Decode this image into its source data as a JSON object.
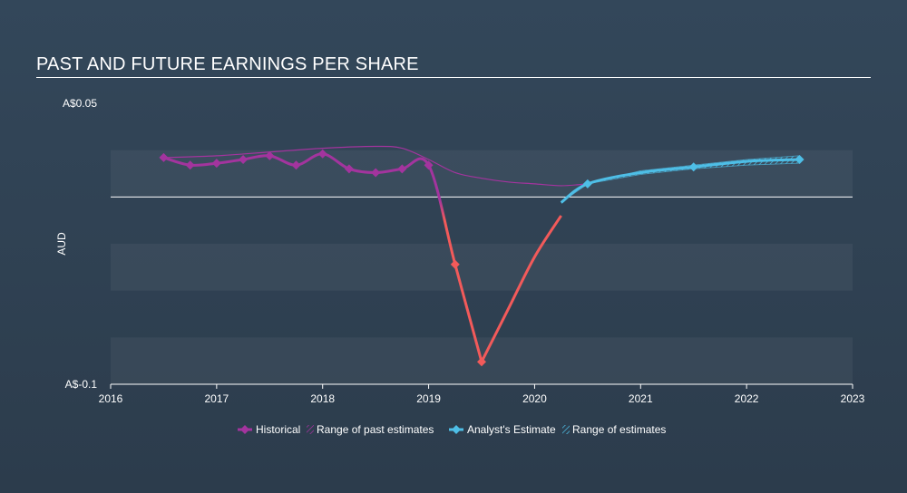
{
  "title": "PAST AND FUTURE EARNINGS PER SHARE",
  "colors": {
    "historical": "#a3349e",
    "historical_negative": "#f25a5a",
    "estimate": "#4ebee6",
    "past_range": "#a3349e",
    "baseline": "#ffffff"
  },
  "chart_data": {
    "type": "line",
    "ylabel": "AUD",
    "ytick_labels": [
      "A$0.05",
      "A$-0.1"
    ],
    "ylim": [
      -0.1,
      0.05
    ],
    "xlim": [
      2016,
      2023
    ],
    "xtick_labels": [
      "2016",
      "2017",
      "2018",
      "2019",
      "2020",
      "2021",
      "2022",
      "2023"
    ],
    "grid": "horizontal bands",
    "legend_position": "bottom-center",
    "series": [
      {
        "name": "Historical",
        "x": [
          2016.5,
          2016.75,
          2017.0,
          2017.25,
          2017.5,
          2017.75,
          2018.0,
          2018.25,
          2018.5,
          2018.75,
          2019.0,
          2019.25,
          2019.5
        ],
        "y": [
          0.021,
          0.017,
          0.018,
          0.02,
          0.022,
          0.017,
          0.023,
          0.015,
          0.013,
          0.015,
          0.017,
          -0.036,
          -0.088
        ]
      },
      {
        "name": "Range of past estimates",
        "x": [
          2016.5,
          2017.0,
          2017.5,
          2018.0,
          2018.5,
          2018.75,
          2019.0,
          2019.25,
          2019.5,
          2019.75,
          2020.0,
          2020.25,
          2020.5
        ],
        "y": [
          0.021,
          0.022,
          0.024,
          0.026,
          0.027,
          0.026,
          0.02,
          0.013,
          0.01,
          0.008,
          0.007,
          0.006,
          0.007
        ]
      },
      {
        "name": "Analyst's Estimate",
        "x": [
          2020.25,
          2020.5,
          2021.0,
          2021.5,
          2022.0,
          2022.5
        ],
        "y": [
          -0.003,
          0.007,
          0.013,
          0.016,
          0.019,
          0.02
        ],
        "range_low": [
          -0.003,
          0.007,
          0.012,
          0.015,
          0.017,
          0.018
        ],
        "range_high": [
          -0.003,
          0.007,
          0.014,
          0.017,
          0.02,
          0.022
        ]
      }
    ],
    "recovery_curve": {
      "x": [
        2019.5,
        2019.75,
        2020.0,
        2020.25,
        2020.5
      ],
      "y": [
        -0.088,
        -0.06,
        -0.032,
        -0.01,
        0.007
      ]
    },
    "legend": [
      {
        "label": "Historical",
        "marker": "diamond-line",
        "color": "#a3349e"
      },
      {
        "label": "Range of past estimates",
        "marker": "hatch",
        "color": "#a3349e"
      },
      {
        "label": "Analyst's Estimate",
        "marker": "diamond-line",
        "color": "#4ebee6"
      },
      {
        "label": "Range of estimates",
        "marker": "hatch",
        "color": "#4ebee6"
      }
    ]
  }
}
